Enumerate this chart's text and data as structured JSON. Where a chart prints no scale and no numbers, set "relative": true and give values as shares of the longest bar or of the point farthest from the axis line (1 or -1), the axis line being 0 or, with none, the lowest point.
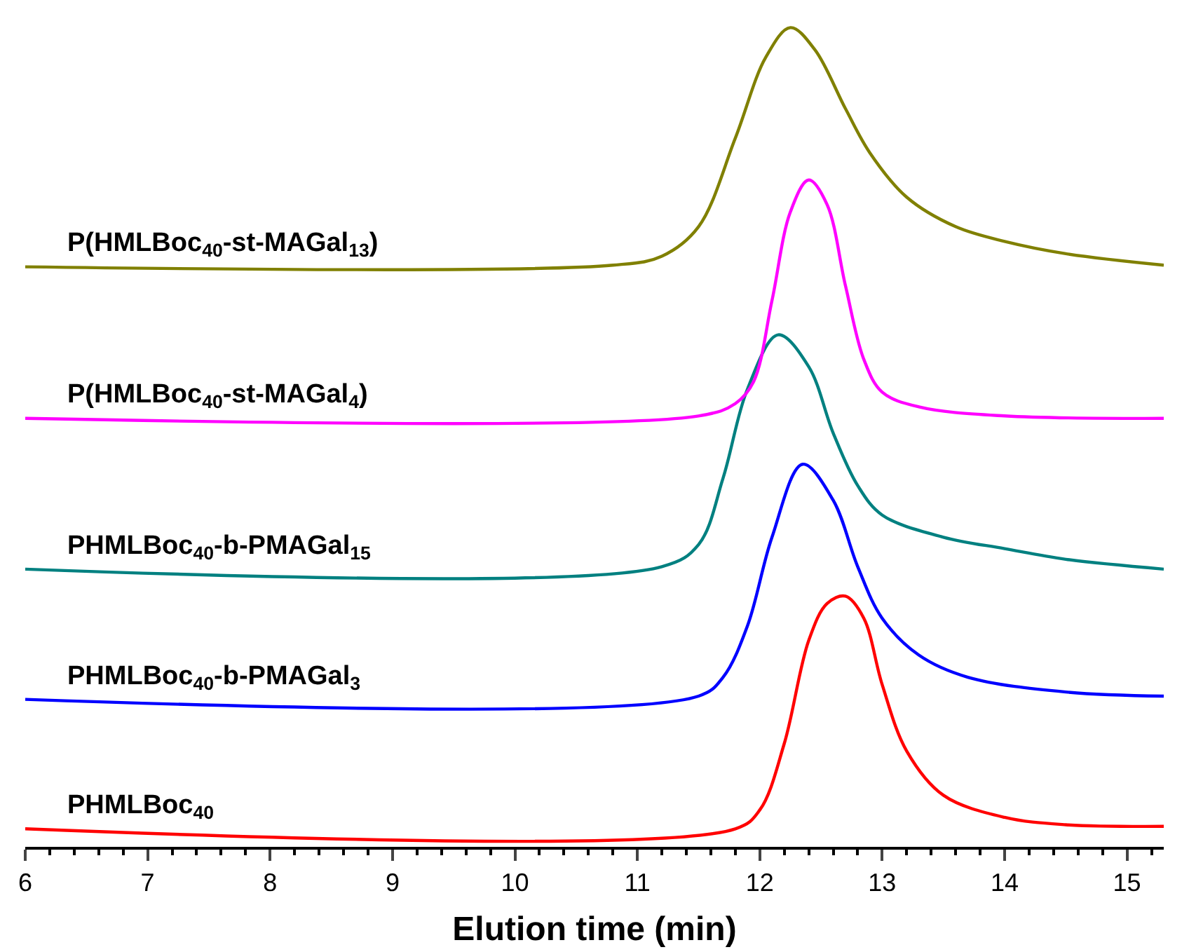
{
  "chart_data": {
    "type": "line",
    "relative": true,
    "xlabel": "Elution time (min)",
    "xlim": [
      6,
      15.3
    ],
    "xticks": [
      6,
      7,
      8,
      9,
      10,
      11,
      12,
      13,
      14,
      15
    ],
    "legend": false,
    "marker": "none",
    "line_style": "solid",
    "series": [
      {
        "name": "PHMLBoc$_{40}$",
        "color": "#ff0000",
        "x": [
          6,
          11.8,
          12.0,
          12.2,
          12.4,
          12.55,
          12.7,
          12.85,
          13.0,
          13.2,
          13.5,
          14,
          14.5,
          15.3
        ],
        "values": [
          0.022,
          0.022,
          0.045,
          0.126,
          0.252,
          0.297,
          0.306,
          0.279,
          0.198,
          0.117,
          0.063,
          0.036,
          0.027,
          0.025
        ]
      },
      {
        "name": "PHMLBoc$_{40}$-b-PMAGal$_{3}$",
        "color": "#0000ff",
        "x": [
          6,
          11.5,
          11.7,
          11.9,
          12.1,
          12.35,
          12.6,
          12.8,
          13.0,
          13.3,
          13.7,
          14.5,
          15.3
        ],
        "values": [
          0.18,
          0.184,
          0.207,
          0.27,
          0.378,
          0.467,
          0.423,
          0.342,
          0.279,
          0.234,
          0.207,
          0.189,
          0.184
        ]
      },
      {
        "name": "PHMLBoc$_{40}$-b-PMAGal$_{15}$",
        "color": "#008080",
        "x": [
          6,
          11.2,
          11.5,
          11.7,
          11.9,
          12.15,
          12.4,
          12.6,
          12.8,
          13.0,
          13.5,
          14,
          14.5,
          15.3
        ],
        "values": [
          0.339,
          0.342,
          0.369,
          0.45,
          0.559,
          0.625,
          0.586,
          0.505,
          0.441,
          0.405,
          0.378,
          0.364,
          0.351,
          0.339
        ]
      },
      {
        "name": "P(HMLBoc$_{40}$-st-MAGal$_{4}$)",
        "color": "#ff00ff",
        "x": [
          6,
          11.5,
          11.8,
          11.95,
          12.1,
          12.25,
          12.4,
          12.55,
          12.7,
          12.85,
          13.0,
          13.3,
          14,
          15.3
        ],
        "values": [
          0.523,
          0.526,
          0.541,
          0.568,
          0.667,
          0.775,
          0.814,
          0.784,
          0.685,
          0.595,
          0.555,
          0.537,
          0.526,
          0.523
        ]
      },
      {
        "name": "P(HMLBoc$_{40}$-st-MAGal$_{13}$)",
        "color": "#808000",
        "x": [
          6,
          10.8,
          11.2,
          11.5,
          11.8,
          12.05,
          12.25,
          12.45,
          12.7,
          12.9,
          13.2,
          13.6,
          14,
          14.5,
          15.3
        ],
        "values": [
          0.708,
          0.71,
          0.721,
          0.757,
          0.865,
          0.964,
          1.0,
          0.973,
          0.901,
          0.847,
          0.793,
          0.757,
          0.739,
          0.724,
          0.71
        ]
      }
    ]
  }
}
